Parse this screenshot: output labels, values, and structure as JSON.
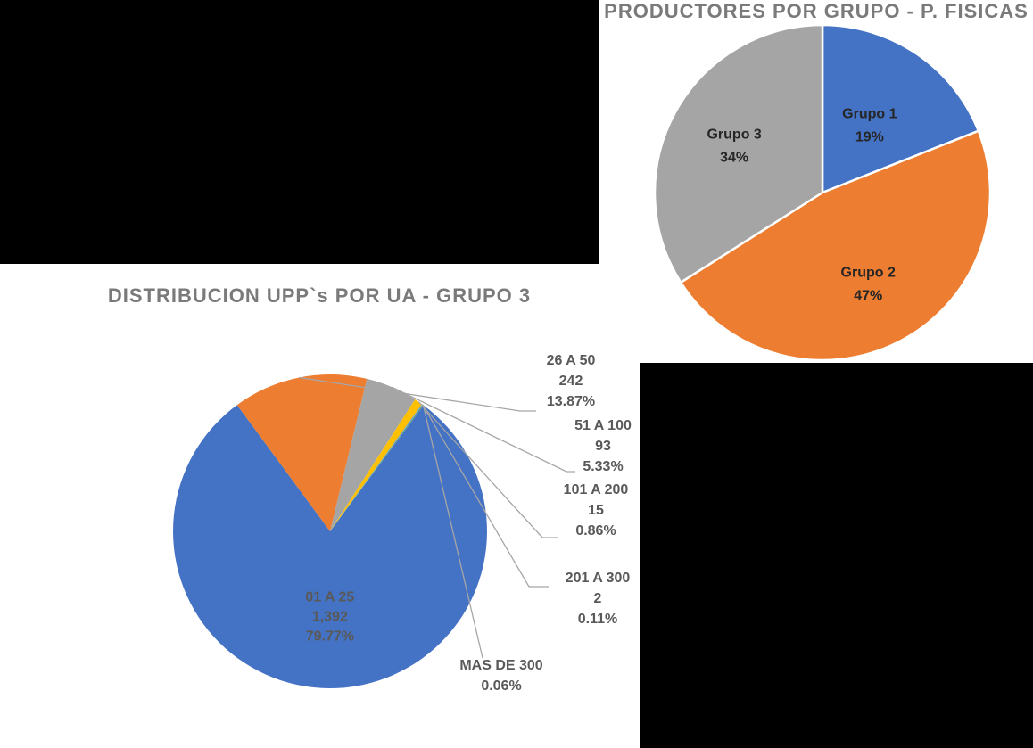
{
  "chart_data": [
    {
      "type": "pie",
      "title": "PRODUCTORES POR GRUPO - P. FISICAS",
      "slices": [
        {
          "label": "Grupo 1",
          "percent_label": "19%",
          "value": 19,
          "color": "#4472c4"
        },
        {
          "label": "Grupo 2",
          "percent_label": "47%",
          "value": 47,
          "color": "#ed7d31"
        },
        {
          "label": "Grupo 3",
          "percent_label": "34%",
          "value": 34,
          "color": "#a5a5a5"
        }
      ],
      "label_color": "#262626"
    },
    {
      "type": "pie",
      "title": "DISTRIBUCION UPP`s POR UA - GRUPO 3",
      "slices": [
        {
          "label": "01 A 25",
          "count_label": "1,392",
          "percent_label": "79.77%",
          "value": 1392,
          "color": "#4472c4"
        },
        {
          "label": "26 A 50",
          "count_label": "242",
          "percent_label": "13.87%",
          "value": 242,
          "color": "#ed7d31"
        },
        {
          "label": "51 A 100",
          "count_label": "93",
          "percent_label": "5.33%",
          "value": 93,
          "color": "#a5a5a5"
        },
        {
          "label": "101 A 200",
          "count_label": "15",
          "percent_label": "0.86%",
          "value": 15,
          "color": "#ffc000"
        },
        {
          "label": "201 A 300",
          "count_label": "2",
          "percent_label": "0.11%",
          "value": 2,
          "color": "#5b9bd5"
        },
        {
          "label": "MAS DE 300",
          "count_label": "",
          "percent_label": "0.06%",
          "value": 1,
          "color": "#70ad47"
        }
      ],
      "label_color": "#595959"
    }
  ]
}
